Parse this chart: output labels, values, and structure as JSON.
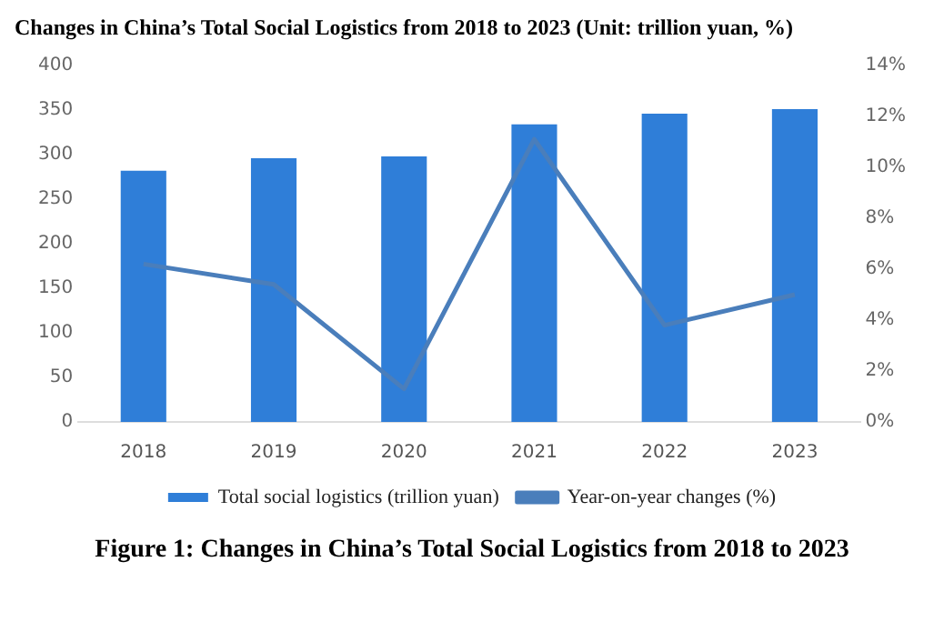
{
  "chart_data": {
    "type": "bar",
    "title": "Changes in China’s Total Social Logistics from 2018 to 2023 (Unit: trillion yuan, %)",
    "categories": [
      "2018",
      "2019",
      "2020",
      "2021",
      "2022",
      "2023"
    ],
    "series": [
      {
        "name": "Total social logistics (trillion yuan)",
        "color": "#2f7ed8",
        "values": [
          282,
          296,
          298,
          334,
          346,
          351
        ]
      },
      {
        "name": "Year-on-year changes (%)",
        "type": "line",
        "axis": "y2",
        "color": "#4a7ebb",
        "values": [
          6.2,
          5.4,
          1.3,
          11.1,
          3.8,
          5.0
        ]
      }
    ],
    "ylim": [
      0,
      400
    ],
    "yticks": [
      0,
      50,
      100,
      150,
      200,
      250,
      300,
      350,
      400
    ],
    "y2lim": [
      0,
      14
    ],
    "y2ticks": [
      {
        "value": 0,
        "label": "0%"
      },
      {
        "value": 2,
        "label": "2%"
      },
      {
        "value": 4,
        "label": "4%"
      },
      {
        "value": 6,
        "label": "6%"
      },
      {
        "value": 8,
        "label": "8%"
      },
      {
        "value": 10,
        "label": "10%"
      },
      {
        "value": 12,
        "label": "12%"
      },
      {
        "value": 14,
        "label": "14%"
      }
    ],
    "grid": false,
    "legend": "bottom",
    "marker": "none",
    "annotations": [
      "Figure 1: Changes in China’s Total Social Logistics from 2018 to 2023"
    ]
  }
}
